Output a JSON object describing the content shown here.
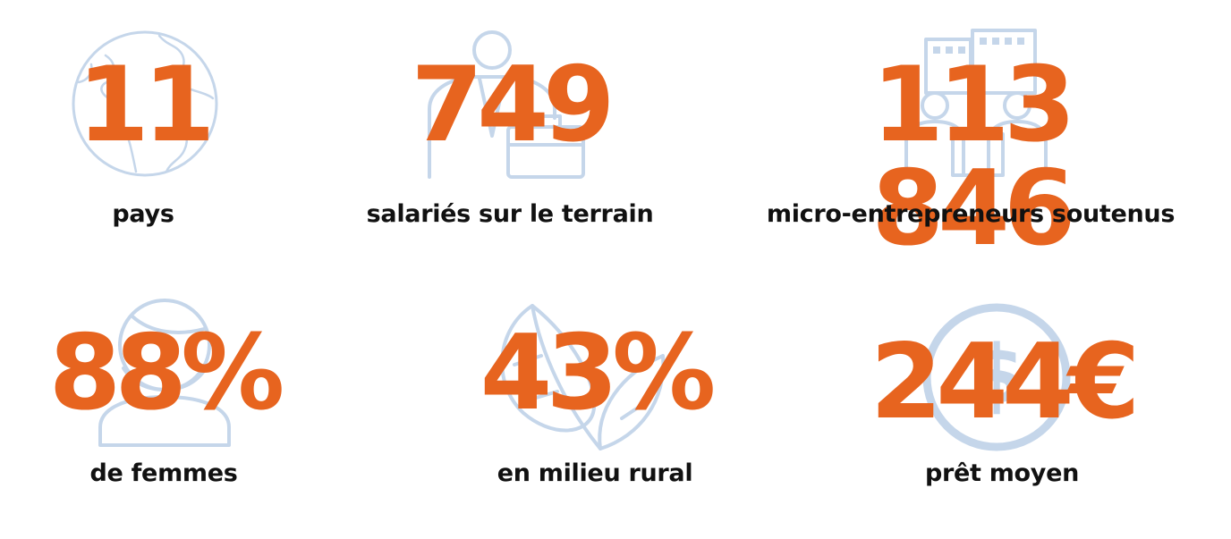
{
  "stats": [
    {
      "value": "11",
      "label": "pays",
      "icon": "globe-icon"
    },
    {
      "value": "749",
      "label": "salariés sur le terrain",
      "icon": "employee-briefcase-icon"
    },
    {
      "value": "113 846",
      "label": "micro-entrepreneurs soutenus",
      "icon": "people-buildings-icon"
    },
    {
      "value": "88%",
      "label": "de femmes",
      "icon": "woman-icon"
    },
    {
      "value": "43%",
      "label": "en milieu rural",
      "icon": "leaf-icon"
    },
    {
      "value": "244€",
      "label": "prêt moyen",
      "icon": "dollar-coin-icon"
    }
  ],
  "colors": {
    "value": "#e7641f",
    "label": "#111111",
    "icon": "#c5d6ea"
  }
}
